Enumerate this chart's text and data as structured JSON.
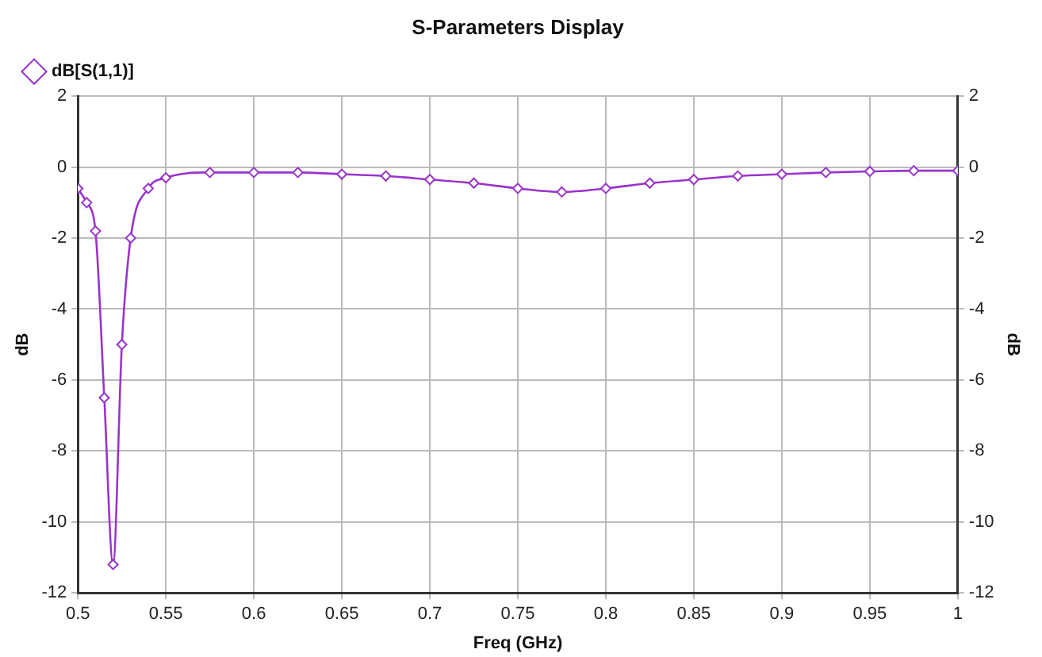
{
  "chart_data": {
    "type": "line",
    "title": "S-Parameters Display",
    "xlabel": "Freq (GHz)",
    "ylabel": "dB",
    "y2label": "dB",
    "x": [
      0.5,
      0.505,
      0.51,
      0.515,
      0.52,
      0.525,
      0.53,
      0.54,
      0.55,
      0.575,
      0.6,
      0.625,
      0.65,
      0.675,
      0.7,
      0.725,
      0.75,
      0.775,
      0.8,
      0.825,
      0.85,
      0.875,
      0.9,
      0.925,
      0.95,
      0.975,
      1.0
    ],
    "series": [
      {
        "name": "dB[S(1,1)]",
        "color": "#9933cc",
        "values": [
          -0.6,
          -1.0,
          -1.8,
          -6.5,
          -11.2,
          -5.0,
          -2.0,
          -0.6,
          -0.3,
          -0.15,
          -0.15,
          -0.15,
          -0.2,
          -0.25,
          -0.35,
          -0.45,
          -0.6,
          -0.7,
          -0.6,
          -0.45,
          -0.35,
          -0.25,
          -0.2,
          -0.15,
          -0.12,
          -0.1,
          -0.1
        ]
      }
    ],
    "xlim": [
      0.5,
      1
    ],
    "xticks": [
      0.5,
      0.55,
      0.6,
      0.65,
      0.7,
      0.75,
      0.8,
      0.85,
      0.9,
      0.95,
      1
    ],
    "ylim": [
      -12,
      2
    ],
    "yticks": [
      -12,
      -10,
      -8,
      -6,
      -4,
      -2,
      0,
      2
    ],
    "y2lim": [
      -12,
      2
    ],
    "y2ticks": [
      -12,
      -10,
      -8,
      -6,
      -4,
      -2,
      0,
      2
    ],
    "grid": true,
    "legend": "top left",
    "marker": "diamond",
    "line_style": "solid"
  }
}
